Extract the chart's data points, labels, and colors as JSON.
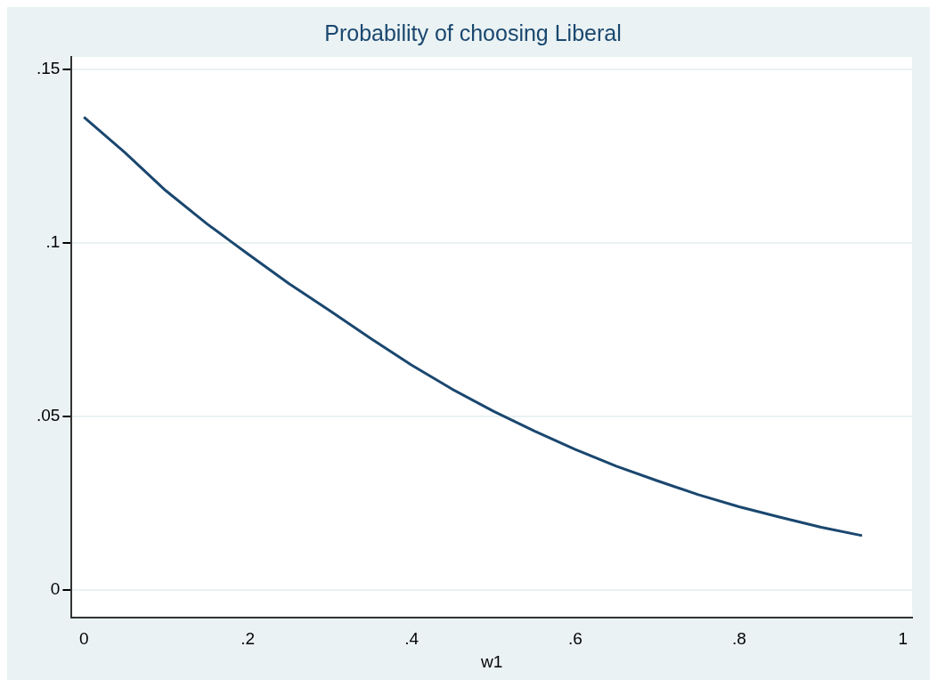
{
  "chart_data": {
    "type": "line",
    "title": "Probability of choosing Liberal",
    "xlabel": "w1",
    "x": [
      0,
      0.05,
      0.1,
      0.15,
      0.2,
      0.25,
      0.3,
      0.35,
      0.4,
      0.45,
      0.5,
      0.55,
      0.6,
      0.65,
      0.7,
      0.75,
      0.8,
      0.85,
      0.9,
      0.95
    ],
    "series": [
      {
        "color": "#1a476f",
        "values": [
          0.1362,
          0.126,
          0.115,
          0.1055,
          0.0968,
          0.0883,
          0.0805,
          0.0725,
          0.0648,
          0.0578,
          0.0515,
          0.0458,
          0.0405,
          0.0357,
          0.0315,
          0.0275,
          0.024,
          0.021,
          0.0181,
          0.0157
        ]
      }
    ],
    "xlim": [
      -0.015,
      1.011
    ],
    "ylim": [
      -0.008,
      0.1535
    ],
    "xticks": [
      0,
      {
        "value": 0.2,
        "label": ".2"
      },
      {
        "value": 0.4,
        "label": ".4"
      },
      {
        "value": 0.6,
        "label": ".6"
      },
      {
        "value": 0.8,
        "label": ".8"
      },
      1
    ],
    "yticks": [
      0,
      {
        "value": 0.05,
        "label": ".05"
      },
      {
        "value": 0.1,
        "label": ".1"
      },
      {
        "value": 0.15,
        "label": ".15"
      }
    ],
    "grid": "y",
    "marker": "none",
    "line_style": "solid"
  }
}
